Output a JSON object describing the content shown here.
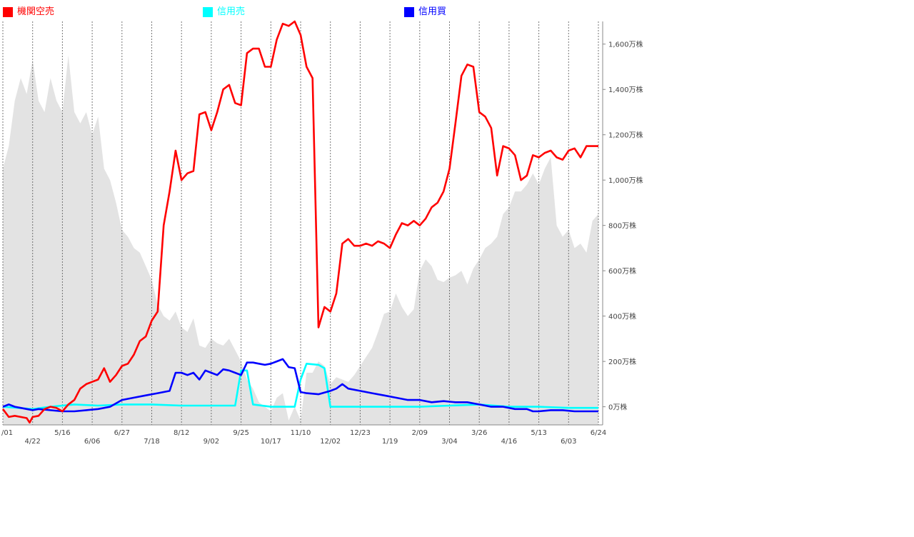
{
  "colors": {
    "institutional_short": "#ff0000",
    "margin_sell": "#00ffff",
    "margin_buy": "#0000ff",
    "volume_area": "#e3e3e3",
    "grid": "#555555"
  },
  "legend": [
    {
      "label": "機関空売",
      "color": "#ff0000"
    },
    {
      "label": "信用売",
      "color": "#00ffff"
    },
    {
      "label": "信用買",
      "color": "#0000ff"
    }
  ],
  "chart_data": {
    "type": "line",
    "grid": "vertical dashed lines at x tick positions",
    "legend_position": "top",
    "y_axis": {
      "position": "right",
      "ylim": [
        -80,
        1700
      ],
      "ticks": [
        0,
        200,
        400,
        600,
        800,
        1000,
        1200,
        1400,
        1600
      ],
      "tick_labels": [
        "0万株",
        "200万株",
        "400万株",
        "600万株",
        "800万株",
        "1,000万株",
        "1,200万株",
        "1,400万株",
        "1,600万株"
      ]
    },
    "x_axis": {
      "index_range": [
        0,
        100
      ],
      "ticks": [
        {
          "label": "/01",
          "index": 0,
          "row": 0
        },
        {
          "label": "4/22",
          "index": 5,
          "row": 1
        },
        {
          "label": "5/16",
          "index": 10,
          "row": 0
        },
        {
          "label": "6/06",
          "index": 15,
          "row": 1
        },
        {
          "label": "6/27",
          "index": 20,
          "row": 0
        },
        {
          "label": "7/18",
          "index": 25,
          "row": 1
        },
        {
          "label": "8/12",
          "index": 30,
          "row": 0
        },
        {
          "label": "9/02",
          "index": 35,
          "row": 1
        },
        {
          "label": "9/25",
          "index": 40,
          "row": 0
        },
        {
          "label": "10/17",
          "index": 45,
          "row": 1
        },
        {
          "label": "11/10",
          "index": 50,
          "row": 0
        },
        {
          "label": "12/02",
          "index": 55,
          "row": 1
        },
        {
          "label": "12/23",
          "index": 60,
          "row": 0
        },
        {
          "label": "1/19",
          "index": 65,
          "row": 1
        },
        {
          "label": "2/09",
          "index": 70,
          "row": 0
        },
        {
          "label": "3/04",
          "index": 75,
          "row": 1
        },
        {
          "label": "3/26",
          "index": 80,
          "row": 0
        },
        {
          "label": "4/16",
          "index": 85,
          "row": 1
        },
        {
          "label": "5/13",
          "index": 90,
          "row": 0
        },
        {
          "label": "6/03",
          "index": 95,
          "row": 1
        },
        {
          "label": "6/24",
          "index": 100,
          "row": 0
        }
      ]
    },
    "area_series": {
      "name": "",
      "points": [
        [
          0,
          1050
        ],
        [
          1,
          1150
        ],
        [
          2,
          1350
        ],
        [
          3,
          1450
        ],
        [
          4,
          1380
        ],
        [
          5,
          1530
        ],
        [
          6,
          1350
        ],
        [
          7,
          1300
        ],
        [
          8,
          1450
        ],
        [
          9,
          1350
        ],
        [
          10,
          1300
        ],
        [
          11,
          1550
        ],
        [
          12,
          1300
        ],
        [
          13,
          1250
        ],
        [
          14,
          1300
        ],
        [
          15,
          1200
        ],
        [
          16,
          1280
        ],
        [
          17,
          1050
        ],
        [
          18,
          1000
        ],
        [
          19,
          900
        ],
        [
          20,
          780
        ],
        [
          21,
          750
        ],
        [
          22,
          700
        ],
        [
          23,
          680
        ],
        [
          24,
          620
        ],
        [
          25,
          560
        ],
        [
          26,
          450
        ],
        [
          27,
          400
        ],
        [
          28,
          380
        ],
        [
          29,
          420
        ],
        [
          30,
          350
        ],
        [
          31,
          330
        ],
        [
          32,
          390
        ],
        [
          33,
          270
        ],
        [
          34,
          260
        ],
        [
          35,
          300
        ],
        [
          36,
          280
        ],
        [
          37,
          270
        ],
        [
          38,
          300
        ],
        [
          39,
          250
        ],
        [
          40,
          200
        ],
        [
          41,
          120
        ],
        [
          42,
          80
        ],
        [
          43,
          20
        ],
        [
          44,
          0
        ],
        [
          45,
          -20
        ],
        [
          46,
          40
        ],
        [
          47,
          60
        ],
        [
          48,
          -60
        ],
        [
          49,
          0
        ],
        [
          50,
          -60
        ],
        [
          51,
          150
        ],
        [
          52,
          150
        ],
        [
          53,
          200
        ],
        [
          54,
          180
        ],
        [
          55,
          100
        ],
        [
          56,
          130
        ],
        [
          57,
          120
        ],
        [
          58,
          110
        ],
        [
          59,
          140
        ],
        [
          60,
          180
        ],
        [
          61,
          220
        ],
        [
          62,
          260
        ],
        [
          63,
          330
        ],
        [
          64,
          410
        ],
        [
          65,
          420
        ],
        [
          66,
          500
        ],
        [
          67,
          440
        ],
        [
          68,
          400
        ],
        [
          69,
          430
        ],
        [
          70,
          600
        ],
        [
          71,
          650
        ],
        [
          72,
          620
        ],
        [
          73,
          560
        ],
        [
          74,
          550
        ],
        [
          75,
          570
        ],
        [
          76,
          580
        ],
        [
          77,
          600
        ],
        [
          78,
          540
        ],
        [
          79,
          610
        ],
        [
          80,
          650
        ],
        [
          81,
          700
        ],
        [
          82,
          720
        ],
        [
          83,
          750
        ],
        [
          84,
          850
        ],
        [
          85,
          880
        ],
        [
          86,
          950
        ],
        [
          87,
          950
        ],
        [
          88,
          980
        ],
        [
          89,
          1030
        ],
        [
          90,
          980
        ],
        [
          91,
          1050
        ],
        [
          92,
          1100
        ],
        [
          93,
          800
        ],
        [
          94,
          750
        ],
        [
          95,
          780
        ],
        [
          96,
          700
        ],
        [
          97,
          720
        ],
        [
          98,
          680
        ],
        [
          99,
          820
        ],
        [
          100,
          850
        ]
      ]
    },
    "series": [
      {
        "name": "機関空売",
        "color": "#ff0000",
        "points": [
          [
            0,
            -10
          ],
          [
            1,
            -45
          ],
          [
            2,
            -40
          ],
          [
            3,
            -45
          ],
          [
            4,
            -50
          ],
          [
            4.5,
            -70
          ],
          [
            5,
            -45
          ],
          [
            6,
            -40
          ],
          [
            7,
            -10
          ],
          [
            8,
            0
          ],
          [
            9,
            -5
          ],
          [
            10,
            -20
          ],
          [
            11,
            10
          ],
          [
            12,
            30
          ],
          [
            13,
            80
          ],
          [
            14,
            100
          ],
          [
            15,
            110
          ],
          [
            16,
            120
          ],
          [
            17,
            170
          ],
          [
            18,
            110
          ],
          [
            19,
            140
          ],
          [
            20,
            180
          ],
          [
            21,
            190
          ],
          [
            22,
            230
          ],
          [
            23,
            290
          ],
          [
            24,
            310
          ],
          [
            25,
            380
          ],
          [
            26,
            420
          ],
          [
            27,
            800
          ],
          [
            28,
            950
          ],
          [
            29,
            1130
          ],
          [
            30,
            1000
          ],
          [
            31,
            1030
          ],
          [
            32,
            1040
          ],
          [
            33,
            1290
          ],
          [
            34,
            1300
          ],
          [
            35,
            1220
          ],
          [
            36,
            1300
          ],
          [
            37,
            1400
          ],
          [
            38,
            1420
          ],
          [
            39,
            1340
          ],
          [
            40,
            1330
          ],
          [
            41,
            1560
          ],
          [
            42,
            1580
          ],
          [
            43,
            1580
          ],
          [
            44,
            1500
          ],
          [
            45,
            1500
          ],
          [
            46,
            1620
          ],
          [
            47,
            1690
          ],
          [
            48,
            1680
          ],
          [
            49,
            1700
          ],
          [
            50,
            1640
          ],
          [
            51,
            1500
          ],
          [
            52,
            1450
          ],
          [
            53,
            350
          ],
          [
            54,
            440
          ],
          [
            55,
            420
          ],
          [
            56,
            500
          ],
          [
            57,
            720
          ],
          [
            58,
            740
          ],
          [
            59,
            710
          ],
          [
            60,
            710
          ],
          [
            61,
            720
          ],
          [
            62,
            710
          ],
          [
            63,
            730
          ],
          [
            64,
            720
          ],
          [
            65,
            700
          ],
          [
            66,
            760
          ],
          [
            67,
            810
          ],
          [
            68,
            800
          ],
          [
            69,
            820
          ],
          [
            70,
            800
          ],
          [
            71,
            830
          ],
          [
            72,
            880
          ],
          [
            73,
            900
          ],
          [
            74,
            950
          ],
          [
            75,
            1050
          ],
          [
            76,
            1250
          ],
          [
            77,
            1460
          ],
          [
            78,
            1510
          ],
          [
            79,
            1500
          ],
          [
            80,
            1300
          ],
          [
            81,
            1280
          ],
          [
            82,
            1230
          ],
          [
            83,
            1020
          ],
          [
            84,
            1150
          ],
          [
            85,
            1140
          ],
          [
            86,
            1110
          ],
          [
            87,
            1000
          ],
          [
            88,
            1020
          ],
          [
            89,
            1110
          ],
          [
            90,
            1100
          ],
          [
            91,
            1120
          ],
          [
            92,
            1130
          ],
          [
            93,
            1100
          ],
          [
            94,
            1090
          ],
          [
            95,
            1130
          ],
          [
            96,
            1140
          ],
          [
            97,
            1100
          ],
          [
            98,
            1150
          ],
          [
            99,
            1150
          ],
          [
            100,
            1150
          ]
        ]
      },
      {
        "name": "信用売",
        "color": "#00ffff",
        "points": [
          [
            0,
            0
          ],
          [
            5,
            -10
          ],
          [
            8,
            0
          ],
          [
            12,
            10
          ],
          [
            16,
            5
          ],
          [
            20,
            10
          ],
          [
            25,
            10
          ],
          [
            30,
            5
          ],
          [
            35,
            5
          ],
          [
            38,
            5
          ],
          [
            39,
            5
          ],
          [
            40,
            160
          ],
          [
            41,
            160
          ],
          [
            42,
            10
          ],
          [
            45,
            0
          ],
          [
            48,
            0
          ],
          [
            49,
            0
          ],
          [
            50,
            120
          ],
          [
            51,
            190
          ],
          [
            53,
            185
          ],
          [
            54,
            170
          ],
          [
            55,
            0
          ],
          [
            60,
            0
          ],
          [
            65,
            0
          ],
          [
            70,
            0
          ],
          [
            75,
            5
          ],
          [
            80,
            10
          ],
          [
            85,
            0
          ],
          [
            90,
            0
          ],
          [
            95,
            -5
          ],
          [
            100,
            -5
          ]
        ]
      },
      {
        "name": "信用買",
        "color": "#0000ff",
        "points": [
          [
            0,
            0
          ],
          [
            1,
            10
          ],
          [
            2,
            0
          ],
          [
            3,
            -5
          ],
          [
            4,
            -10
          ],
          [
            5,
            -15
          ],
          [
            6,
            -10
          ],
          [
            10,
            -20
          ],
          [
            12,
            -20
          ],
          [
            14,
            -15
          ],
          [
            16,
            -10
          ],
          [
            18,
            0
          ],
          [
            20,
            30
          ],
          [
            22,
            40
          ],
          [
            24,
            50
          ],
          [
            26,
            60
          ],
          [
            28,
            70
          ],
          [
            29,
            150
          ],
          [
            30,
            150
          ],
          [
            31,
            140
          ],
          [
            32,
            150
          ],
          [
            33,
            120
          ],
          [
            34,
            160
          ],
          [
            35,
            150
          ],
          [
            36,
            140
          ],
          [
            37,
            165
          ],
          [
            38,
            160
          ],
          [
            39,
            150
          ],
          [
            40,
            140
          ],
          [
            41,
            195
          ],
          [
            42,
            195
          ],
          [
            43,
            190
          ],
          [
            44,
            185
          ],
          [
            45,
            190
          ],
          [
            46,
            200
          ],
          [
            47,
            210
          ],
          [
            48,
            175
          ],
          [
            49,
            170
          ],
          [
            50,
            65
          ],
          [
            51,
            60
          ],
          [
            53,
            55
          ],
          [
            55,
            70
          ],
          [
            56,
            80
          ],
          [
            57,
            100
          ],
          [
            58,
            80
          ],
          [
            60,
            70
          ],
          [
            62,
            60
          ],
          [
            64,
            50
          ],
          [
            66,
            40
          ],
          [
            68,
            30
          ],
          [
            70,
            30
          ],
          [
            72,
            20
          ],
          [
            74,
            25
          ],
          [
            76,
            20
          ],
          [
            78,
            20
          ],
          [
            80,
            10
          ],
          [
            82,
            0
          ],
          [
            84,
            0
          ],
          [
            86,
            -10
          ],
          [
            88,
            -10
          ],
          [
            89,
            -20
          ],
          [
            90,
            -20
          ],
          [
            92,
            -15
          ],
          [
            94,
            -15
          ],
          [
            96,
            -20
          ],
          [
            98,
            -20
          ],
          [
            100,
            -20
          ]
        ]
      }
    ]
  }
}
